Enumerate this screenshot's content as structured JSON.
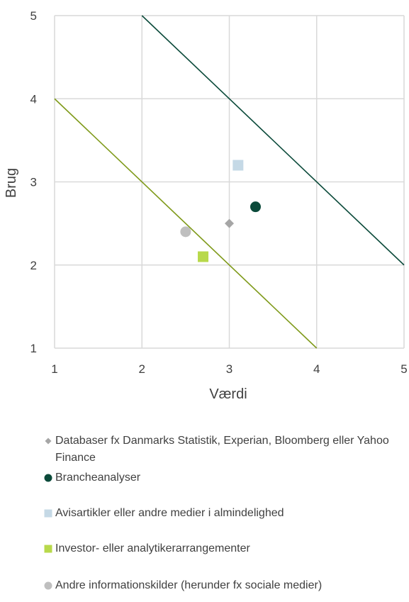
{
  "chart_data": {
    "type": "scatter",
    "xlabel": "Værdi",
    "ylabel": "Brug",
    "xlim": [
      1,
      5
    ],
    "ylim": [
      1,
      5
    ],
    "xticks": [
      "1",
      "2",
      "3",
      "4",
      "5"
    ],
    "yticks": [
      "1",
      "2",
      "3",
      "4",
      "5"
    ],
    "grid": true,
    "legend_position": "bottom",
    "series": [
      {
        "name": "Databaser fx Danmarks Statistik, Experian, Bloomberg eller Yahoo Finance",
        "marker": "diamond",
        "color": "#a6a6a6",
        "points": [
          {
            "x": 3.0,
            "y": 2.5
          }
        ]
      },
      {
        "name": "Brancheanalyser",
        "marker": "circle",
        "color": "#0b4a3a",
        "points": [
          {
            "x": 3.3,
            "y": 2.7
          }
        ]
      },
      {
        "name": "Avisartikler eller andre medier i almindelighed",
        "marker": "square",
        "color": "#c5d9e6",
        "points": [
          {
            "x": 3.1,
            "y": 3.2
          }
        ]
      },
      {
        "name": "Investor- eller analytikerarrangementer",
        "marker": "square",
        "color": "#b8d94b",
        "points": [
          {
            "x": 2.7,
            "y": 2.1
          }
        ]
      },
      {
        "name": "Andre informationskilder (herunder fx sociale medier)",
        "marker": "circle",
        "color": "#bfbfbf",
        "points": [
          {
            "x": 2.5,
            "y": 2.4
          }
        ]
      }
    ],
    "reference_lines": [
      {
        "color": "#0b4a3a",
        "points": [
          {
            "x": 2,
            "y": 5
          },
          {
            "x": 5,
            "y": 2
          }
        ]
      },
      {
        "color": "#7f9a1a",
        "points": [
          {
            "x": 1,
            "y": 4
          },
          {
            "x": 4,
            "y": 1
          }
        ]
      }
    ]
  }
}
